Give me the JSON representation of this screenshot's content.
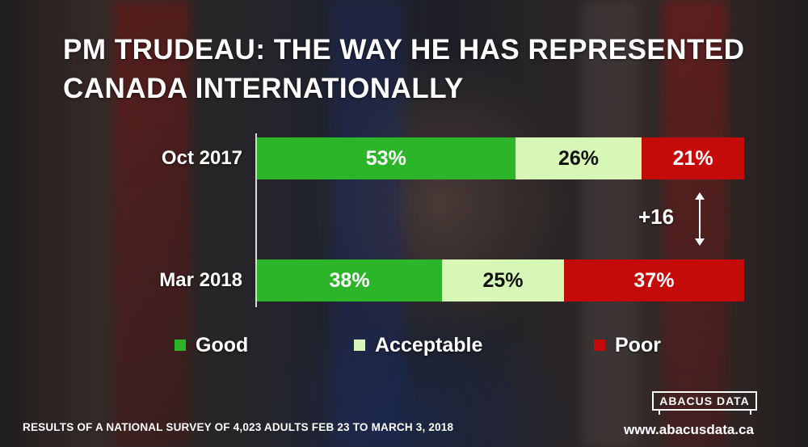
{
  "title": "PM TRUDEAU: THE WAY HE HAS REPRESENTED CANADA INTERNATIONALLY",
  "chart_data": {
    "type": "bar",
    "orientation": "horizontal-stacked-100",
    "title": "PM TRUDEAU: THE WAY HE HAS REPRESENTED CANADA INTERNATIONALLY",
    "categories": [
      "Oct 2017",
      "Mar 2018"
    ],
    "series": [
      {
        "name": "Good",
        "values": [
          53,
          38
        ],
        "labels": [
          "53%",
          "38%"
        ],
        "color": "#2db52a"
      },
      {
        "name": "Acceptable",
        "values": [
          26,
          25
        ],
        "labels": [
          "26%",
          "25%"
        ],
        "color": "#d8f7b6"
      },
      {
        "name": "Poor",
        "values": [
          21,
          37
        ],
        "labels": [
          "21%",
          "37%"
        ],
        "color": "#c50a0a"
      }
    ],
    "annotation": "+16",
    "legend_position": "bottom"
  },
  "footnote": "RESULTS OF A NATIONAL SURVEY OF 4,023 ADULTS FEB 23 TO MARCH 3, 2018",
  "logo_text": "ABACUS DATA",
  "website": "www.abacusdata.ca"
}
